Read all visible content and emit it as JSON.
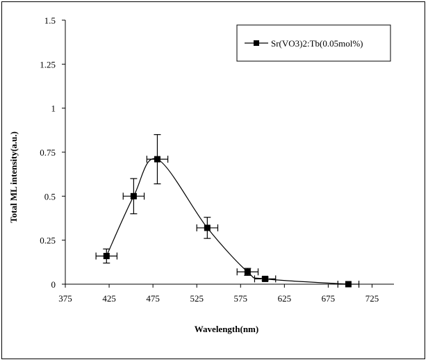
{
  "chart_data": {
    "type": "scatter",
    "title": "",
    "xlabel": "Wavelength(nm)",
    "ylabel": "Total ML intensity(a.u.)",
    "xlim": [
      375,
      750
    ],
    "ylim": [
      0,
      1.5
    ],
    "x_ticks": [
      "375",
      "425",
      "475",
      "525",
      "575",
      "625",
      "675",
      "725"
    ],
    "y_ticks": [
      "0",
      "0.25",
      "0.5",
      "0.75",
      "1",
      "1.25",
      "1.5"
    ],
    "legend_position": "top-right",
    "grid": false,
    "series": [
      {
        "name": "Sr(VO3)2:Tb(0.05mol%)",
        "color": "#000000",
        "x": [
          422,
          453,
          480,
          537,
          583,
          603,
          698
        ],
        "y": [
          0.16,
          0.5,
          0.71,
          0.32,
          0.07,
          0.03,
          0.0
        ],
        "x_err": [
          12,
          12,
          12,
          12,
          12,
          12,
          12
        ],
        "y_err": [
          0.04,
          0.1,
          0.14,
          0.06,
          0.02,
          0.01,
          0.0
        ]
      }
    ]
  }
}
